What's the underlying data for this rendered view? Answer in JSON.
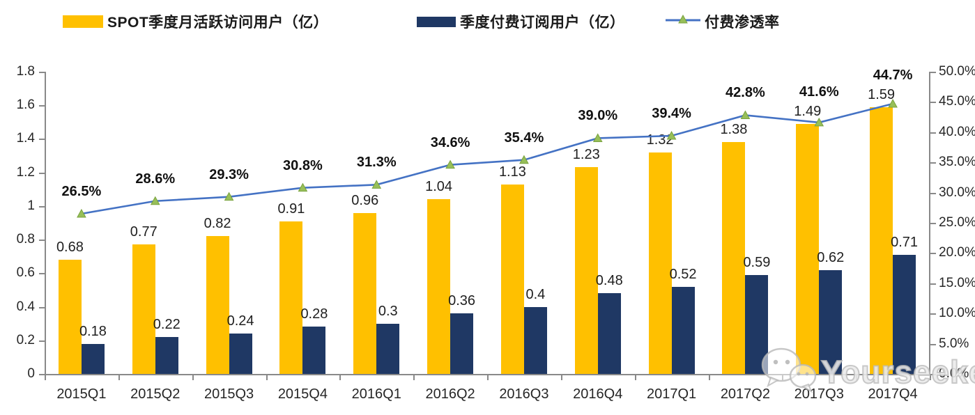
{
  "legend": {
    "items": [
      {
        "label": "SPOT季度月活跃访问用户（亿）",
        "type": "bar",
        "color": "#FFC000"
      },
      {
        "label": "季度付费订阅用户（亿）",
        "type": "bar",
        "color": "#1F3864"
      },
      {
        "label": "付费渗透率",
        "type": "line",
        "color": "#4472C4",
        "marker_color": "#97BF59"
      }
    ]
  },
  "chart_data": {
    "type": "bar+line",
    "categories": [
      "2015Q1",
      "2015Q2",
      "2015Q3",
      "2015Q4",
      "2016Q1",
      "2016Q2",
      "2016Q3",
      "2016Q4",
      "2017Q1",
      "2017Q2",
      "2017Q3",
      "2017Q4"
    ],
    "series": [
      {
        "name": "SPOT季度月活跃访问用户（亿）",
        "type": "bar",
        "axis": "left",
        "color": "#FFC000",
        "values": [
          0.68,
          0.77,
          0.82,
          0.91,
          0.96,
          1.04,
          1.13,
          1.23,
          1.32,
          1.38,
          1.49,
          1.59
        ],
        "labels": [
          "0.68",
          "0.77",
          "0.82",
          "0.91",
          "0.96",
          "1.04",
          "1.13",
          "1.23",
          "1.32",
          "1.38",
          "1.49",
          "1.59"
        ]
      },
      {
        "name": "季度付费订阅用户（亿）",
        "type": "bar",
        "axis": "left",
        "color": "#1F3864",
        "values": [
          0.18,
          0.22,
          0.24,
          0.28,
          0.3,
          0.36,
          0.4,
          0.48,
          0.52,
          0.59,
          0.62,
          0.71
        ],
        "labels": [
          "0.18",
          "0.22",
          "0.24",
          "0.28",
          "0.3",
          "0.36",
          "0.4",
          "0.48",
          "0.52",
          "0.59",
          "0.62",
          "0.71"
        ]
      },
      {
        "name": "付费渗透率",
        "type": "line",
        "axis": "right",
        "color": "#4472C4",
        "marker_color": "#97BF59",
        "values": [
          26.5,
          28.6,
          29.3,
          30.8,
          31.3,
          34.6,
          35.4,
          39.0,
          39.4,
          42.8,
          41.6,
          44.7
        ],
        "labels": [
          "26.5%",
          "28.6%",
          "29.3%",
          "30.8%",
          "31.3%",
          "34.6%",
          "35.4%",
          "39.0%",
          "39.4%",
          "42.8%",
          "41.6%",
          "44.7%"
        ]
      }
    ],
    "axes": {
      "left": {
        "min": 0,
        "max": 1.8,
        "tick_values": [
          0,
          0.2,
          0.4,
          0.6,
          0.8,
          1,
          1.2,
          1.4,
          1.6,
          1.8
        ],
        "tick_labels": [
          "0",
          "0.2",
          "0.4",
          "0.6",
          "0.8",
          "1",
          "1.2",
          "1.4",
          "1.6",
          "1.8"
        ]
      },
      "right": {
        "min": 0,
        "max": 50,
        "tick_values": [
          0,
          5,
          10,
          15,
          20,
          25,
          30,
          35,
          40,
          45,
          50
        ],
        "tick_labels": [
          "0.0%",
          "5.0%",
          "10.0%",
          "15.0%",
          "20.0%",
          "25.0%",
          "30.0%",
          "35.0%",
          "40.0%",
          "45.0%",
          "50.0%"
        ]
      }
    },
    "grid": false,
    "legend_position": "top",
    "title": ""
  },
  "watermark": {
    "text": "Yourseeker",
    "icon": "wechat-icon"
  }
}
